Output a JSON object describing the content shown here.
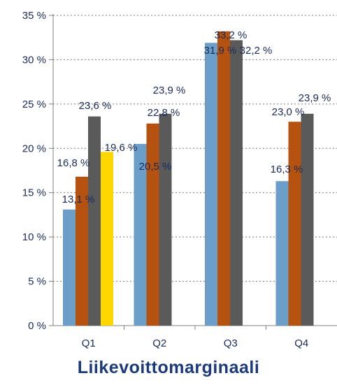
{
  "chart_data": {
    "type": "bar",
    "title": "Liikevoittomarginaali",
    "categories": [
      "Q1",
      "Q2",
      "Q3",
      "Q4"
    ],
    "ylim": [
      0,
      35
    ],
    "yticks": [
      {
        "value": 0,
        "label": "0 %"
      },
      {
        "value": 5,
        "label": "5 %"
      },
      {
        "value": 10,
        "label": "10 %"
      },
      {
        "value": 15,
        "label": "15 %"
      },
      {
        "value": 20,
        "label": "20 %"
      },
      {
        "value": 25,
        "label": "25 %"
      },
      {
        "value": 30,
        "label": "30 %"
      },
      {
        "value": 35,
        "label": "35 %"
      }
    ],
    "grid": "horizontal-dotted",
    "series": [
      {
        "color": "#6b9ec9",
        "values": [
          13.1,
          20.5,
          31.9,
          16.3
        ],
        "labels": [
          "13,1 %",
          "20,5 %",
          "31,9 %",
          "16,3 %"
        ]
      },
      {
        "color": "#b5520f",
        "values": [
          16.8,
          22.8,
          33.2,
          23.0
        ],
        "labels": [
          "16,8 %",
          "22,8 %",
          "33,2 %",
          "23,0 %"
        ]
      },
      {
        "color": "#5a5a5a",
        "values": [
          23.6,
          23.9,
          32.2,
          23.9
        ],
        "labels": [
          "23,6 %",
          "23,9 %",
          "32,2 %",
          "23,9 %"
        ]
      },
      {
        "color": "#ffd700",
        "values": [
          19.6,
          null,
          null,
          null
        ],
        "labels": [
          "19,6 %",
          null,
          null,
          null
        ]
      }
    ]
  }
}
